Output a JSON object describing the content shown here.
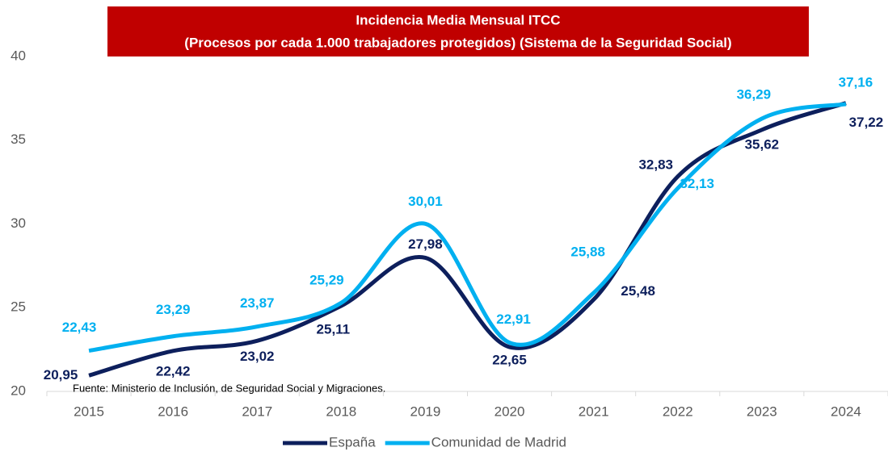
{
  "chart_data": {
    "type": "line",
    "title": "Incidencia Media Mensual ITCC",
    "subtitle": "(Procesos por cada 1.000 trabajadores protegidos) (Sistema de la Seguridad Social)",
    "annotation": "Fuente: Ministerio de Inclusión, de Seguridad Social y Migraciones.",
    "categories": [
      "2015",
      "2016",
      "2017",
      "2018",
      "2019",
      "2020",
      "2021",
      "2022",
      "2023",
      "2024"
    ],
    "series": [
      {
        "name": "España",
        "color": "#0d1f5c",
        "values": [
          20.95,
          22.42,
          23.02,
          25.11,
          27.98,
          22.65,
          25.48,
          32.83,
          35.62,
          37.22
        ],
        "value_labels": [
          "20,95",
          "22,42",
          "23,02",
          "25,11",
          "27,98",
          "22,65",
          "25,48",
          "32,83",
          "35,62",
          "37,22"
        ]
      },
      {
        "name": "Comunidad de Madrid",
        "color": "#00b0f0",
        "values": [
          22.43,
          23.29,
          23.87,
          25.29,
          30.01,
          22.91,
          25.88,
          32.13,
          36.29,
          37.16
        ],
        "value_labels": [
          "22,43",
          "23,29",
          "23,87",
          "25,29",
          "30,01",
          "22,91",
          "25,88",
          "32,13",
          "36,29",
          "37,16"
        ]
      }
    ],
    "ylim": [
      20,
      40
    ],
    "yticks": [
      20,
      25,
      30,
      35,
      40
    ],
    "legend": "bottom"
  }
}
